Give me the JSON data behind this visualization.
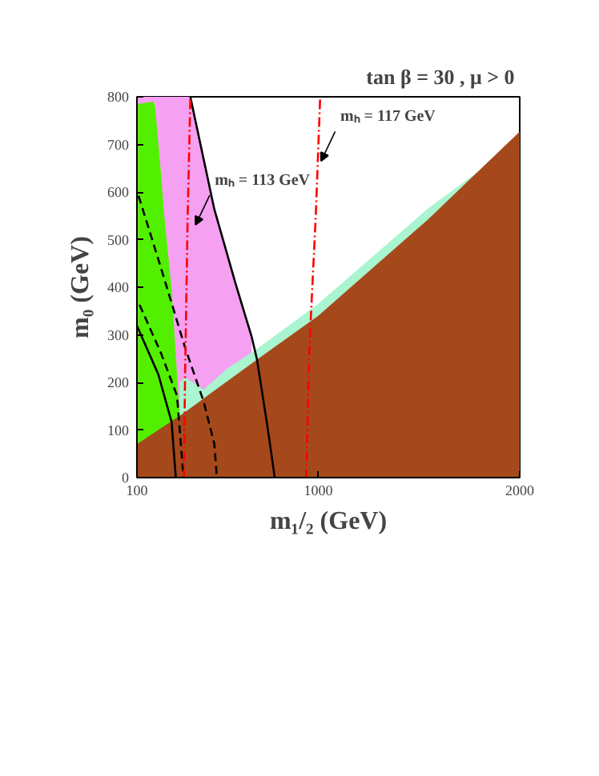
{
  "chart_data": {
    "type": "area",
    "title": "tan β = 30 ,  μ > 0",
    "xlabel": "m₁/₂ (GeV)",
    "ylabel": "m₀ (GeV)",
    "xlim": [
      100,
      2000
    ],
    "ylim": [
      0,
      800
    ],
    "xticks": [
      100,
      1000,
      2000
    ],
    "yticks": [
      0,
      100,
      200,
      300,
      400,
      500,
      600,
      700,
      800
    ],
    "grid": false,
    "series": [
      {
        "color": "#f5a0f0",
        "x": [
          100,
          365,
          484,
          590,
          670
        ],
        "values": [
          800,
          800,
          564,
          407,
          295
        ]
      },
      {
        "color": "#52f000",
        "x": [
          105,
          180,
          190,
          219,
          235,
          272,
          299,
          312
        ],
        "values": [
          785,
          790,
          780,
          640,
          553,
          396,
          217,
          132
        ]
      },
      {
        "color": "#a8f5d0",
        "x": [
          312,
          340,
          431,
          550,
          696,
          1000,
          1544,
          1800
        ],
        "values": [
          200,
          211,
          185,
          230,
          270,
          365,
          565,
          645
        ]
      },
      {
        "color": "#a5491c",
        "x": [
          100,
          340,
          696,
          1000,
          1544,
          2000
        ],
        "values": [
          70,
          138,
          248,
          340,
          542,
          727
        ]
      },
      {
        "type": "line",
        "color": "#000000",
        "line_style": "solid",
        "x": [
          365,
          484,
          590,
          670,
          696,
          749,
          784
        ],
        "values": [
          800,
          564,
          407,
          295,
          248,
          104,
          0
        ]
      },
      {
        "type": "line",
        "color": "#000000",
        "line_style": "solid",
        "x": [
          100,
          206,
          272,
          293
        ],
        "values": [
          319,
          217,
          117,
          0
        ]
      },
      {
        "type": "line",
        "color": "#000000",
        "line_style": "dashed",
        "x": [
          113,
          219,
          299,
          331
        ],
        "values": [
          363,
          262,
          172,
          0
        ]
      },
      {
        "type": "line",
        "color": "#000000",
        "line_style": "dashed",
        "x": [
          108,
          219,
          339,
          431,
          484,
          497
        ],
        "values": [
          592,
          441,
          273,
          160,
          71,
          0
        ]
      },
      {
        "type": "line",
        "color": "#ff0000",
        "line_style": "dotted",
        "x": [
          365,
          352,
          339,
          333
        ],
        "values": [
          794,
          553,
          216,
          0
        ]
      },
      {
        "type": "line",
        "color": "#ff0000",
        "line_style": "dotted",
        "x": [
          1009,
          988,
          956,
          940
        ],
        "values": [
          794,
          553,
          273,
          0
        ]
      }
    ],
    "annotations": [
      {
        "text": "mₕ = 113 GeV",
        "x": 391,
        "y": 531
      },
      {
        "text": "mₕ = 117 GeV",
        "x": 1014,
        "y": 665
      }
    ]
  }
}
